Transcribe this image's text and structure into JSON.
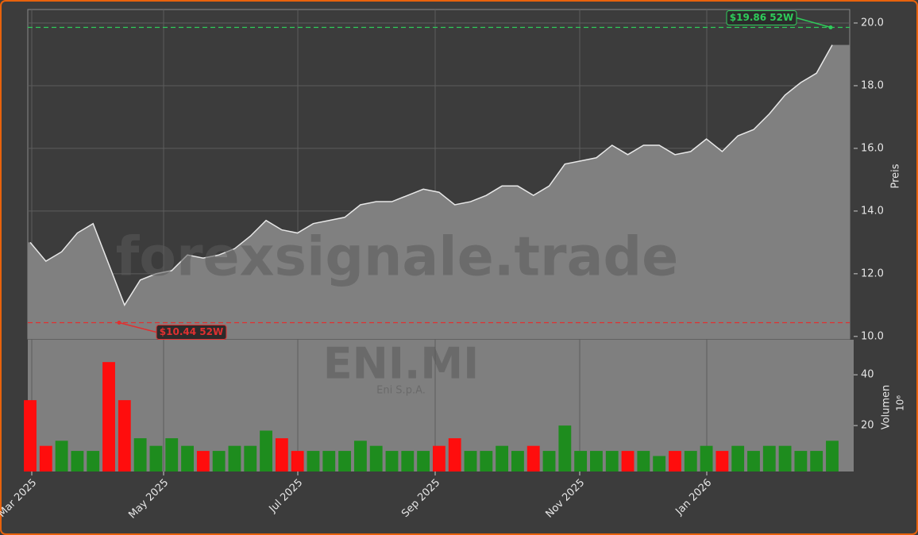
{
  "chart_data": {
    "type": "price-volume",
    "watermark": "forexsignale.trade",
    "symbol": "ENI.MI",
    "company": "Eni S.p.A.",
    "ylabel": "Preis",
    "y2label": "Volumen",
    "y2unit": "10⁶",
    "xticks": [
      "Mar 2025",
      "May 2025",
      "Jul 2025",
      "Sep 2025",
      "Nov 2025",
      "Jan 2026"
    ],
    "ylim": [
      9.92,
      20.43
    ],
    "yticks": [
      {
        "value": 10,
        "label": "10.0"
      },
      {
        "value": 12,
        "label": "12.0"
      },
      {
        "value": 14,
        "label": "14.0"
      },
      {
        "value": 16,
        "label": "16.0"
      },
      {
        "value": 18,
        "label": "18.0"
      },
      {
        "value": 20,
        "label": "20.0"
      }
    ],
    "y2lim": [
      1.9,
      53.8
    ],
    "y2ticks": [
      20,
      40
    ],
    "grid": true,
    "up_color": "#1e8c1e",
    "down_color": "#ff0d0d",
    "series": [
      {
        "name": "Preis",
        "color": "#e8e8e8",
        "area_color": "#808080",
        "values": [
          13.0,
          12.4,
          12.7,
          13.3,
          13.6,
          12.3,
          11.0,
          11.8,
          12.0,
          12.1,
          12.6,
          12.5,
          12.6,
          12.8,
          13.2,
          13.7,
          13.4,
          13.3,
          13.6,
          13.7,
          13.8,
          14.2,
          14.3,
          14.3,
          14.5,
          14.7,
          14.6,
          14.2,
          14.3,
          14.5,
          14.8,
          14.8,
          14.5,
          14.8,
          15.5,
          15.6,
          15.7,
          16.1,
          15.8,
          16.1,
          16.1,
          15.8,
          15.9,
          16.3,
          15.9,
          16.4,
          16.6,
          17.1,
          17.7,
          18.1,
          18.4,
          19.3
        ]
      },
      {
        "name": "Volumen",
        "axis": "y2",
        "values": [
          30,
          12,
          14,
          10,
          10,
          45,
          30,
          15,
          12,
          15,
          12,
          10,
          10,
          12,
          12,
          18,
          15,
          10,
          10,
          10,
          10,
          14,
          12,
          10,
          10,
          10,
          12,
          15,
          10,
          10,
          12,
          10,
          12,
          10,
          20,
          10,
          10,
          10,
          10,
          10,
          8,
          10,
          10,
          12,
          10,
          12,
          10,
          12,
          12,
          10,
          10,
          14
        ]
      }
    ],
    "annotations": [
      {
        "value": 19.86,
        "label": "$19.86 52W",
        "color": "#2ecc5a"
      },
      {
        "value": 10.44,
        "label": "$10.44 52W",
        "color": "#e03030"
      }
    ]
  }
}
